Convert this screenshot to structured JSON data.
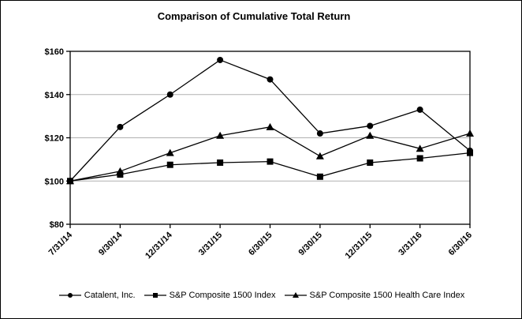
{
  "title": "Comparison of Cumulative Total Return",
  "colors": {
    "series": "#000000",
    "gridline": "#b0b0b0",
    "background": "#ffffff",
    "border": "#000000"
  },
  "chart_data": {
    "type": "line",
    "title": "Comparison of Cumulative Total Return",
    "xlabel": "",
    "ylabel": "",
    "categories": [
      "7/31/14",
      "9/30/14",
      "12/31/14",
      "3/31/15",
      "6/30/15",
      "9/30/15",
      "12/31/15",
      "3/31/16",
      "6/30/16"
    ],
    "series": [
      {
        "name": "Catalent, Inc.",
        "marker": "circle",
        "values": [
          100,
          125,
          140,
          156,
          147,
          122,
          125.5,
          133,
          114
        ]
      },
      {
        "name": "S&P Composite 1500 Index",
        "marker": "square",
        "values": [
          100,
          103,
          107.5,
          108.5,
          109,
          102,
          108.5,
          110.5,
          113
        ]
      },
      {
        "name": "S&P Composite 1500 Health Care Index",
        "marker": "triangle",
        "values": [
          100,
          104.5,
          113,
          121,
          125,
          111.5,
          121,
          115,
          122
        ]
      }
    ],
    "ylim": [
      80,
      160
    ],
    "yticks": [
      {
        "value": 80,
        "label": "$80"
      },
      {
        "value": 100,
        "label": "$100"
      },
      {
        "value": 120,
        "label": "$120"
      },
      {
        "value": 140,
        "label": "$140"
      },
      {
        "value": 160,
        "label": "$160"
      }
    ],
    "grid": true,
    "legend_position": "bottom"
  }
}
